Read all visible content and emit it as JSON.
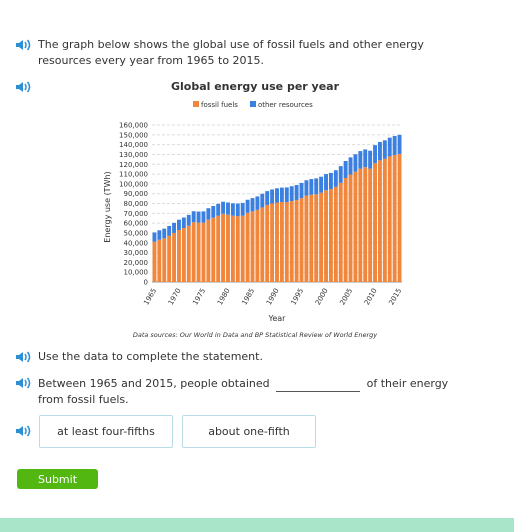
{
  "prompt": "The graph below shows the global use of fossil fuels and other energy resources every year from 1965 to 2015.",
  "chart_data": {
    "type": "bar",
    "stacked": true,
    "title": "Global energy use per year",
    "x_label": "Year",
    "y_label": "Energy use (TWh)",
    "source": "Data sources: Our World in Data and BP Statistical Review of World Energy",
    "categories": [
      "1965",
      null,
      null,
      null,
      null,
      "1970",
      null,
      null,
      null,
      null,
      "1975",
      null,
      null,
      null,
      null,
      "1980",
      null,
      null,
      null,
      null,
      "1985",
      null,
      null,
      null,
      null,
      "1990",
      null,
      null,
      null,
      null,
      "1995",
      null,
      null,
      null,
      null,
      "2000",
      null,
      null,
      null,
      null,
      "2005",
      null,
      null,
      null,
      null,
      "2010",
      null,
      null,
      null,
      null,
      "2015"
    ],
    "series": [
      {
        "name": "fossil fuels",
        "color": "#f0873c",
        "values": [
          41000,
          43000,
          44500,
          47000,
          50000,
          53000,
          55000,
          57500,
          61000,
          60500,
          60500,
          63500,
          65500,
          67500,
          69500,
          68500,
          67500,
          67000,
          67500,
          70500,
          72000,
          73500,
          76000,
          78500,
          80000,
          81000,
          81500,
          81500,
          82500,
          83500,
          85500,
          88000,
          89000,
          89500,
          91000,
          93500,
          94500,
          97000,
          101000,
          106000,
          109500,
          112500,
          115500,
          117000,
          115500,
          121000,
          124000,
          125500,
          128000,
          129500,
          130500
        ]
      },
      {
        "name": "other resources",
        "color": "#3b7fe0",
        "values": [
          9500,
          9700,
          9900,
          10100,
          10300,
          10500,
          10700,
          10900,
          11100,
          11300,
          11500,
          11700,
          11900,
          12100,
          12300,
          12500,
          12700,
          12900,
          13100,
          13300,
          13500,
          13700,
          13900,
          14100,
          14300,
          14500,
          14700,
          14900,
          15100,
          15300,
          15500,
          15700,
          15900,
          16100,
          16300,
          16500,
          16700,
          16900,
          17100,
          17300,
          17500,
          17700,
          17900,
          18100,
          18300,
          18500,
          18700,
          18900,
          19100,
          19300,
          19500
        ]
      }
    ],
    "ylim": [
      0,
      160000
    ],
    "yticks": [
      0,
      {
        "value": 10000,
        "label": "10,000"
      },
      {
        "value": 20000,
        "label": "20,000"
      },
      {
        "value": 30000,
        "label": "30,000"
      },
      {
        "value": 40000,
        "label": "40,000"
      },
      {
        "value": 50000,
        "label": "50,000"
      },
      {
        "value": 60000,
        "label": "60,000"
      },
      {
        "value": 70000,
        "label": "70,000"
      },
      {
        "value": 80000,
        "label": "80,000"
      },
      {
        "value": 90000,
        "label": "90,000"
      },
      {
        "value": 100000,
        "label": "100,000"
      },
      {
        "value": 110000,
        "label": "110,000"
      },
      {
        "value": 120000,
        "label": "120,000"
      },
      {
        "value": 130000,
        "label": "130,000"
      },
      {
        "value": 140000,
        "label": "140,000"
      },
      {
        "value": 150000,
        "label": "150,000"
      },
      {
        "value": 160000,
        "label": "160,000"
      }
    ],
    "grid": true,
    "legend": "top"
  },
  "instruction": "Use the data to complete the statement.",
  "statement": {
    "before": "Between 1965 and 2015, people obtained",
    "after": "of their energy from fossil fuels."
  },
  "choices": [
    "at least four-fifths",
    "about one-fifth"
  ],
  "submit": "Submit"
}
